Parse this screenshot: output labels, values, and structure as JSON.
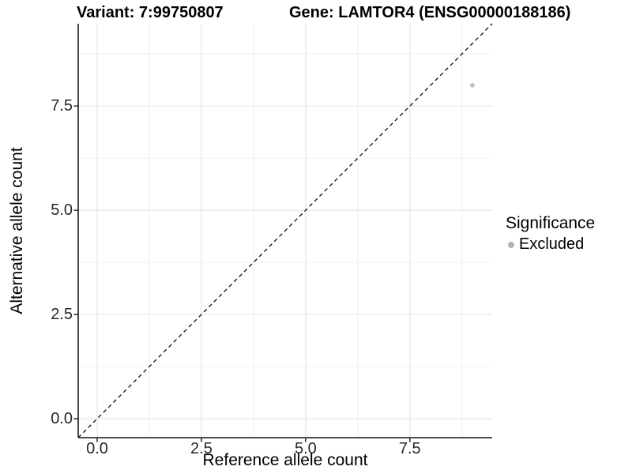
{
  "chart_data": {
    "type": "scatter",
    "title_left": "Variant: 7:99750807",
    "title_right": "Gene: LAMTOR4 (ENSG00000188186)",
    "xlabel": "Reference allele count",
    "ylabel": "Alternative allele count",
    "xlim": [
      -0.4545,
      9.4745
    ],
    "ylim": [
      -0.4545,
      9.4745
    ],
    "x_ticks": [
      0,
      2.5,
      5,
      7.5
    ],
    "x_tick_labels": [
      "0.0",
      "2.5",
      "5.0",
      "7.5"
    ],
    "y_ticks": [
      0,
      2.5,
      5,
      7.5
    ],
    "y_tick_labels": [
      "0.0",
      "2.5",
      "5.0",
      "7.5"
    ],
    "minor_ticks": [
      1.25,
      3.75,
      6.25,
      8.75
    ],
    "grid": true,
    "identity_line": {
      "slope": 1,
      "intercept": 0,
      "style": "dashed"
    },
    "points": [
      {
        "x": 9,
        "y": 8,
        "series": "Excluded"
      }
    ],
    "legend": {
      "position": "right",
      "title": "Significance",
      "items": [
        {
          "label": "Excluded",
          "color": "#b3b3b3"
        }
      ]
    },
    "style": {
      "point_color": "#c2c2c2",
      "grid_major_color": "#e6e6e6",
      "grid_minor_color": "#f0f0f0",
      "axis_color": "#333333",
      "dashed_line_color": "#1a1a1a",
      "tick_text_color": "#262626",
      "background": "#ffffff"
    }
  }
}
